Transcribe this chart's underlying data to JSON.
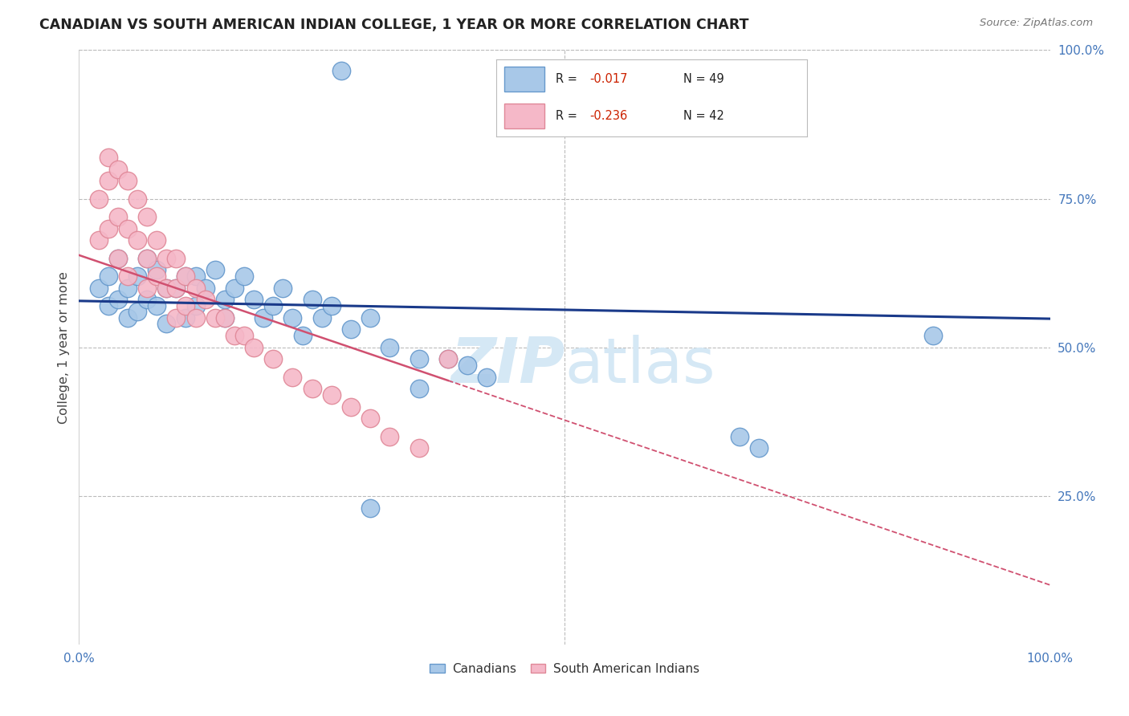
{
  "title": "CANADIAN VS SOUTH AMERICAN INDIAN COLLEGE, 1 YEAR OR MORE CORRELATION CHART",
  "source": "Source: ZipAtlas.com",
  "ylabel": "College, 1 year or more",
  "xlim": [
    0.0,
    1.0
  ],
  "ylim": [
    0.0,
    1.0
  ],
  "blue_color": "#a8c8e8",
  "blue_edge_color": "#6699cc",
  "pink_color": "#f5b8c8",
  "pink_edge_color": "#e08898",
  "blue_line_color": "#1a3a8a",
  "pink_line_color": "#d05070",
  "watermark_color": "#d5e8f5",
  "tick_color": "#4477bb",
  "legend_label_blue": "Canadians",
  "legend_label_pink": "South American Indians",
  "blue_x": [
    0.27,
    0.52,
    0.02,
    0.03,
    0.03,
    0.04,
    0.04,
    0.05,
    0.05,
    0.06,
    0.06,
    0.07,
    0.07,
    0.08,
    0.08,
    0.09,
    0.09,
    0.1,
    0.11,
    0.11,
    0.12,
    0.12,
    0.13,
    0.14,
    0.15,
    0.15,
    0.16,
    0.17,
    0.18,
    0.19,
    0.2,
    0.21,
    0.22,
    0.23,
    0.24,
    0.25,
    0.26,
    0.28,
    0.3,
    0.32,
    0.35,
    0.38,
    0.4,
    0.42,
    0.68,
    0.7,
    0.88,
    0.35,
    0.3
  ],
  "blue_y": [
    0.965,
    0.965,
    0.6,
    0.57,
    0.62,
    0.65,
    0.58,
    0.6,
    0.55,
    0.62,
    0.56,
    0.65,
    0.58,
    0.63,
    0.57,
    0.6,
    0.54,
    0.6,
    0.62,
    0.55,
    0.62,
    0.57,
    0.6,
    0.63,
    0.58,
    0.55,
    0.6,
    0.62,
    0.58,
    0.55,
    0.57,
    0.6,
    0.55,
    0.52,
    0.58,
    0.55,
    0.57,
    0.53,
    0.55,
    0.5,
    0.48,
    0.48,
    0.47,
    0.45,
    0.35,
    0.33,
    0.52,
    0.43,
    0.23
  ],
  "pink_x": [
    0.02,
    0.02,
    0.03,
    0.03,
    0.03,
    0.04,
    0.04,
    0.04,
    0.05,
    0.05,
    0.05,
    0.06,
    0.06,
    0.07,
    0.07,
    0.07,
    0.08,
    0.08,
    0.09,
    0.09,
    0.1,
    0.1,
    0.1,
    0.11,
    0.11,
    0.12,
    0.12,
    0.13,
    0.14,
    0.15,
    0.16,
    0.17,
    0.18,
    0.2,
    0.22,
    0.24,
    0.26,
    0.28,
    0.3,
    0.32,
    0.35,
    0.38
  ],
  "pink_y": [
    0.75,
    0.68,
    0.82,
    0.78,
    0.7,
    0.8,
    0.72,
    0.65,
    0.78,
    0.7,
    0.62,
    0.75,
    0.68,
    0.72,
    0.65,
    0.6,
    0.68,
    0.62,
    0.65,
    0.6,
    0.65,
    0.6,
    0.55,
    0.62,
    0.57,
    0.6,
    0.55,
    0.58,
    0.55,
    0.55,
    0.52,
    0.52,
    0.5,
    0.48,
    0.45,
    0.43,
    0.42,
    0.4,
    0.38,
    0.35,
    0.33,
    0.48
  ]
}
